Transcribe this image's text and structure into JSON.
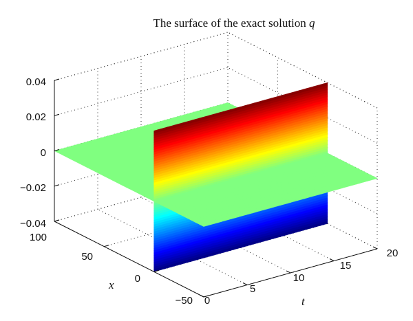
{
  "chart_data": {
    "type": "surface",
    "title_prefix": "The surface of the exact solution ",
    "title_var": "q",
    "xlabel": "t",
    "ylabel": "x",
    "zlabel": "",
    "t_range": [
      0,
      20
    ],
    "x_range": [
      -50,
      100
    ],
    "z_range": [
      -0.04,
      0.04
    ],
    "t_ticks": [
      "0",
      "5",
      "10",
      "15",
      "20"
    ],
    "x_ticks": [
      "−50",
      "0",
      "50",
      "100"
    ],
    "z_ticks": [
      "−0.04",
      "−0.02",
      "0",
      "0.02",
      "0.04"
    ],
    "grid": true,
    "colormap": "jet",
    "surface_description_values": {
      "front_edge_x": 0,
      "peak_amplitude": 0.04,
      "trough_amplitude": -0.04,
      "background_value": 0
    }
  }
}
